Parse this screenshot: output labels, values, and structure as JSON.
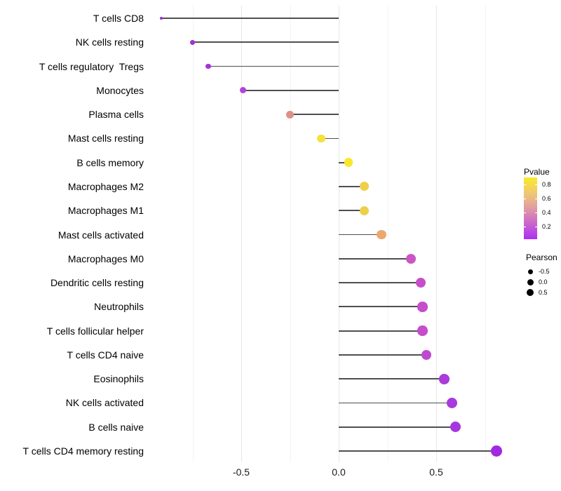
{
  "chart_data": {
    "type": "scatter",
    "subtype": "horizontal-lollipop",
    "title": "",
    "xlabel": "",
    "ylabel": "",
    "xlim": [
      -1.0,
      0.9
    ],
    "x_ticks": [
      {
        "value": -0.5,
        "label": "-0.5"
      },
      {
        "value": 0.0,
        "label": "0.0"
      },
      {
        "value": 0.5,
        "label": "0.5"
      }
    ],
    "x_minor_gridlines": [
      -0.75,
      -0.25,
      0.25,
      0.75
    ],
    "grid": "on",
    "points": [
      {
        "label": "T cells CD8",
        "pearson": -0.91,
        "color": "#9b2fd8"
      },
      {
        "label": "NK cells resting",
        "pearson": -0.75,
        "color": "#9d33d9"
      },
      {
        "label": "T cells regulatory  Tregs",
        "pearson": -0.67,
        "color": "#a134da"
      },
      {
        "label": "Monocytes",
        "pearson": -0.49,
        "color": "#b242dc"
      },
      {
        "label": "Plasma cells",
        "pearson": -0.25,
        "color": "#dd9187"
      },
      {
        "label": "Mast cells resting",
        "pearson": -0.09,
        "color": "#f5e13c"
      },
      {
        "label": "B cells memory",
        "pearson": 0.05,
        "color": "#fae72c"
      },
      {
        "label": "Macrophages M2",
        "pearson": 0.13,
        "color": "#eecf4a"
      },
      {
        "label": "Macrophages M1",
        "pearson": 0.13,
        "color": "#edd04a"
      },
      {
        "label": "Mast cells activated",
        "pearson": 0.22,
        "color": "#eda76e"
      },
      {
        "label": "Macrophages M0",
        "pearson": 0.37,
        "color": "#cb56c3"
      },
      {
        "label": "Dendritic cells resting",
        "pearson": 0.42,
        "color": "#c64fc9"
      },
      {
        "label": "Neutrophils",
        "pearson": 0.43,
        "color": "#c44ecb"
      },
      {
        "label": "T cells follicular helper",
        "pearson": 0.43,
        "color": "#c54ecb"
      },
      {
        "label": "T cells CD4 naive",
        "pearson": 0.45,
        "color": "#bf48d0"
      },
      {
        "label": "Eosinophils",
        "pearson": 0.54,
        "color": "#ab3bda"
      },
      {
        "label": "NK cells activated",
        "pearson": 0.58,
        "color": "#a939de"
      },
      {
        "label": "B cells naive",
        "pearson": 0.6,
        "color": "#a637de"
      },
      {
        "label": "T cells CD4 memory resting",
        "pearson": 0.81,
        "color": "#a129e2"
      }
    ],
    "legend_position": "right",
    "color_legend": {
      "title": "Pvalue",
      "ticks": [
        {
          "value": 0.8,
          "label": "0.8"
        },
        {
          "value": 0.6,
          "label": "0.6"
        },
        {
          "value": 0.4,
          "label": "0.4"
        },
        {
          "value": 0.2,
          "label": "0.2"
        }
      ],
      "gradient_low": "#aa30f2",
      "gradient_mid": "#e09ba2",
      "gradient_high": "#f9e92b"
    },
    "size_legend": {
      "title": "Pearson",
      "items": [
        {
          "label": "-0.5",
          "diameter": 7
        },
        {
          "label": "0.0",
          "diameter": 9
        },
        {
          "label": "0.5",
          "diameter": 10.5
        }
      ]
    },
    "colors": {
      "background": "#ffffff",
      "stem": "#4f4f4f",
      "major_grid": "#e7e7e7",
      "minor_grid": "#f3f3f3",
      "text": "#000000"
    }
  }
}
